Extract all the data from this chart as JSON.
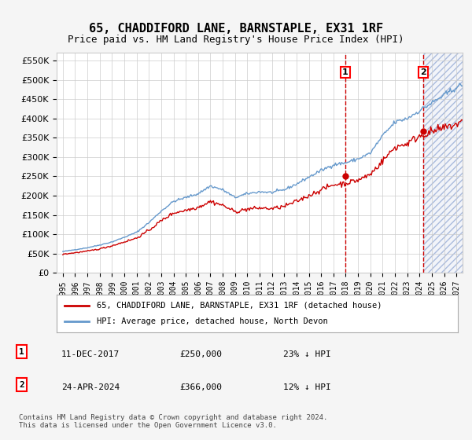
{
  "title": "65, CHADDIFORD LANE, BARNSTAPLE, EX31 1RF",
  "subtitle": "Price paid vs. HM Land Registry's House Price Index (HPI)",
  "hpi_label": "HPI: Average price, detached house, North Devon",
  "price_label": "65, CHADDIFORD LANE, BARNSTAPLE, EX31 1RF (detached house)",
  "footer": "Contains HM Land Registry data © Crown copyright and database right 2024.\nThis data is licensed under the Open Government Licence v3.0.",
  "annotation1": {
    "num": "1",
    "date": "11-DEC-2017",
    "price": "£250,000",
    "pct": "23% ↓ HPI"
  },
  "annotation2": {
    "num": "2",
    "date": "24-APR-2024",
    "price": "£366,000",
    "pct": "12% ↓ HPI"
  },
  "vline1_year": 2017.95,
  "vline2_year": 2024.31,
  "sale1_year": 2017.95,
  "sale1_price": 250000,
  "sale2_year": 2024.31,
  "sale2_price": 366000,
  "ylim": [
    0,
    570000
  ],
  "xlim_start": 1994.5,
  "xlim_end": 2027.5,
  "hpi_color": "#6699cc",
  "price_color": "#cc0000",
  "vline_color": "#cc0000",
  "hatch_color": "#ddeeff",
  "grid_color": "#cccccc",
  "bg_color": "#f5f5f5",
  "plot_bg": "#ffffff",
  "title_fontsize": 11,
  "subtitle_fontsize": 9,
  "tick_years": [
    1995,
    1996,
    1997,
    1998,
    1999,
    2000,
    2001,
    2002,
    2003,
    2004,
    2005,
    2006,
    2007,
    2008,
    2009,
    2010,
    2011,
    2012,
    2013,
    2014,
    2015,
    2016,
    2017,
    2018,
    2019,
    2020,
    2021,
    2022,
    2023,
    2024,
    2025,
    2026,
    2027
  ]
}
